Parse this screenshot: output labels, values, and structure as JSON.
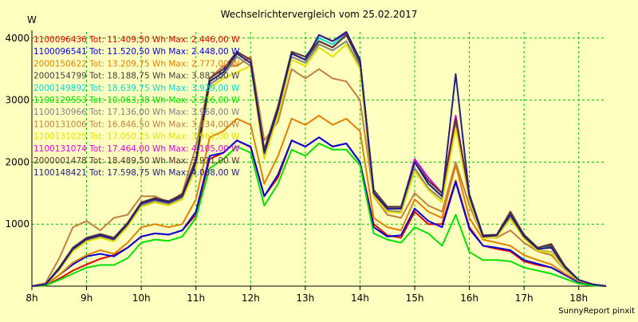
{
  "chart_data": {
    "type": "line",
    "title": "Wechselrichtervergleich vom 25.02.2017",
    "ylabel": "W",
    "credit": "SunnyReport pinxit",
    "ylim": [
      0,
      4100
    ],
    "y_ticks": [
      1000,
      2000,
      3000,
      4000
    ],
    "x_ticks": [
      "8h",
      "9h",
      "10h",
      "11h",
      "12h",
      "13h",
      "14h",
      "15h",
      "16h",
      "17h",
      "18h"
    ],
    "grid": true,
    "legend": "top-left",
    "x": [
      "8:00",
      "8:15",
      "8:30",
      "8:45",
      "9:00",
      "9:15",
      "9:30",
      "9:45",
      "10:00",
      "10:15",
      "10:30",
      "10:45",
      "11:00",
      "11:15",
      "11:30",
      "11:45",
      "12:00",
      "12:15",
      "12:30",
      "12:45",
      "13:00",
      "13:15",
      "13:30",
      "13:45",
      "14:00",
      "14:15",
      "14:30",
      "14:45",
      "15:00",
      "15:15",
      "15:30",
      "15:45",
      "16:00",
      "16:15",
      "16:30",
      "16:45",
      "17:00",
      "17:15",
      "17:30",
      "17:45",
      "18:00",
      "18:15",
      "18:30"
    ],
    "series": [
      {
        "name": "1100096436 Tot: 11.409,50 Wh Max: 2.446,00 W",
        "color": "#e00000",
        "values": [
          0,
          10,
          120,
          250,
          350,
          440,
          500,
          620,
          800,
          850,
          830,
          900,
          1150,
          2050,
          2150,
          2350,
          2240,
          1450,
          1750,
          2350,
          2250,
          2400,
          2250,
          2300,
          2000,
          1000,
          820,
          780,
          1200,
          1000,
          1000,
          1700,
          950,
          650,
          600,
          560,
          400,
          340,
          300,
          180,
          60,
          20,
          0
        ]
      },
      {
        "name": "1100096541 Tot: 11.520,50 Wh Max: 2.448,00 W",
        "color": "#0000e0",
        "values": [
          0,
          20,
          180,
          350,
          480,
          520,
          480,
          620,
          800,
          850,
          830,
          900,
          1200,
          2100,
          2150,
          2350,
          2250,
          1450,
          1800,
          2350,
          2250,
          2400,
          2250,
          2300,
          2000,
          950,
          800,
          820,
          1250,
          1050,
          950,
          1680,
          920,
          650,
          620,
          580,
          420,
          360,
          300,
          180,
          60,
          20,
          0
        ]
      },
      {
        "name": "2000150622 Tot: 13.209,75 Wh Max: 2.777,00 W",
        "color": "#e08000",
        "values": [
          0,
          20,
          180,
          380,
          500,
          580,
          520,
          700,
          950,
          1000,
          950,
          1000,
          1400,
          2400,
          2500,
          2700,
          2600,
          1650,
          2100,
          2700,
          2600,
          2750,
          2600,
          2700,
          2500,
          1100,
          950,
          900,
          1400,
          1200,
          1100,
          1950,
          1100,
          750,
          700,
          650,
          500,
          420,
          350,
          200,
          80,
          30,
          0
        ]
      },
      {
        "name": "2000154799 Tot: 18.188,75 Wh Max: 3.887,00 W",
        "color": "#404040",
        "values": [
          0,
          30,
          280,
          600,
          760,
          820,
          760,
          1000,
          1330,
          1400,
          1350,
          1450,
          2000,
          3300,
          3450,
          3750,
          3600,
          2150,
          2850,
          3750,
          3650,
          3950,
          3850,
          4050,
          3600,
          1500,
          1250,
          1250,
          2000,
          1650,
          1450,
          2650,
          1450,
          800,
          820,
          1200,
          800,
          600,
          650,
          300,
          100,
          30,
          0
        ]
      },
      {
        "name": "2000149892 Tot: 18.639,75 Wh Max: 3.929,00 W",
        "color": "#00d8d8",
        "values": [
          0,
          30,
          300,
          620,
          780,
          840,
          780,
          1020,
          1350,
          1420,
          1370,
          1480,
          2050,
          3350,
          3500,
          3780,
          3650,
          2200,
          2900,
          3780,
          3700,
          4000,
          3900,
          4080,
          3650,
          1550,
          1280,
          1280,
          2020,
          1700,
          1500,
          2700,
          1480,
          820,
          830,
          1150,
          830,
          620,
          620,
          320,
          100,
          30,
          0
        ]
      },
      {
        "name": "1100129553 Tot: 10.063,38 Wh Max: 2.316,00 W",
        "color": "#00e000",
        "values": [
          0,
          10,
          100,
          200,
          300,
          340,
          340,
          450,
          700,
          750,
          730,
          800,
          1100,
          1900,
          2050,
          2250,
          2150,
          1300,
          1650,
          2200,
          2100,
          2300,
          2200,
          2200,
          1950,
          850,
          750,
          700,
          950,
          850,
          650,
          1150,
          550,
          420,
          420,
          400,
          300,
          250,
          200,
          120,
          40,
          10,
          0
        ]
      },
      {
        "name": "1100130966 Tot: 17.136,00 Wh Max: 3.968,00 W",
        "color": "#808080",
        "values": [
          0,
          30,
          270,
          580,
          740,
          800,
          740,
          980,
          1300,
          1370,
          1320,
          1420,
          1950,
          3250,
          3400,
          3700,
          3550,
          2100,
          2800,
          3700,
          3600,
          3900,
          3800,
          3950,
          3550,
          1480,
          1220,
          1200,
          1900,
          1580,
          1400,
          2600,
          1400,
          780,
          800,
          1100,
          780,
          580,
          550,
          280,
          90,
          30,
          0
        ]
      },
      {
        "name": "1100131006 Tot: 16.846,50 Wh Max: 3.734,00 W",
        "color": "#c08040",
        "values": [
          0,
          50,
          450,
          950,
          1050,
          900,
          1100,
          1150,
          1450,
          1450,
          1350,
          1500,
          2250,
          3350,
          3550,
          3550,
          3700,
          2350,
          2650,
          3500,
          3350,
          3500,
          3350,
          3300,
          3000,
          1450,
          1150,
          1100,
          1500,
          1300,
          1200,
          2000,
          1300,
          780,
          780,
          900,
          700,
          560,
          500,
          260,
          90,
          30,
          0
        ]
      },
      {
        "name": "1100131025 Tot: 17.050,25 Wh Max: 3.961,00 W",
        "color": "#e0e000",
        "values": [
          0,
          30,
          260,
          560,
          720,
          780,
          720,
          960,
          1280,
          1350,
          1300,
          1400,
          1900,
          3200,
          3350,
          3450,
          3550,
          2050,
          2750,
          3650,
          3550,
          3850,
          3700,
          3900,
          3500,
          1450,
          1200,
          1180,
          1850,
          1550,
          1350,
          2550,
          1380,
          770,
          790,
          1080,
          770,
          570,
          540,
          270,
          90,
          30,
          0
        ]
      },
      {
        "name": "1100131074 Tot: 17.464,00 Wh Max: 4.105,00 W",
        "color": "#e000e0",
        "values": [
          0,
          30,
          280,
          600,
          760,
          820,
          760,
          1000,
          1330,
          1400,
          1350,
          1450,
          2000,
          3300,
          3450,
          3750,
          3600,
          2150,
          2850,
          3750,
          3650,
          4050,
          3950,
          4080,
          3650,
          1500,
          1250,
          1250,
          2050,
          1750,
          1500,
          2750,
          1450,
          800,
          820,
          1150,
          800,
          600,
          620,
          300,
          100,
          30,
          0
        ]
      },
      {
        "name": "2000001478 Tot: 18.489,50 Wh Max: 3.911,00 W",
        "color": "#603030",
        "values": [
          0,
          30,
          300,
          620,
          780,
          840,
          780,
          1020,
          1350,
          1420,
          1370,
          1480,
          2050,
          3350,
          3500,
          3780,
          3650,
          2200,
          2900,
          3780,
          3700,
          3950,
          3850,
          4050,
          3650,
          1550,
          1280,
          1280,
          2000,
          1700,
          1500,
          2700,
          1480,
          820,
          830,
          1200,
          830,
          620,
          680,
          320,
          100,
          30,
          0
        ]
      },
      {
        "name": "1100148421 Tot: 17.598,75 Wh Max: 4.038,00 W",
        "color": "#202080",
        "values": [
          0,
          30,
          280,
          600,
          760,
          820,
          760,
          1000,
          1330,
          1400,
          1350,
          1450,
          2000,
          3300,
          3450,
          3750,
          3600,
          2150,
          2850,
          3750,
          3650,
          4050,
          3950,
          4100,
          3650,
          1500,
          1250,
          1250,
          2000,
          1650,
          1450,
          3420,
          1450,
          800,
          820,
          1150,
          800,
          600,
          620,
          300,
          100,
          30,
          0
        ]
      }
    ]
  }
}
